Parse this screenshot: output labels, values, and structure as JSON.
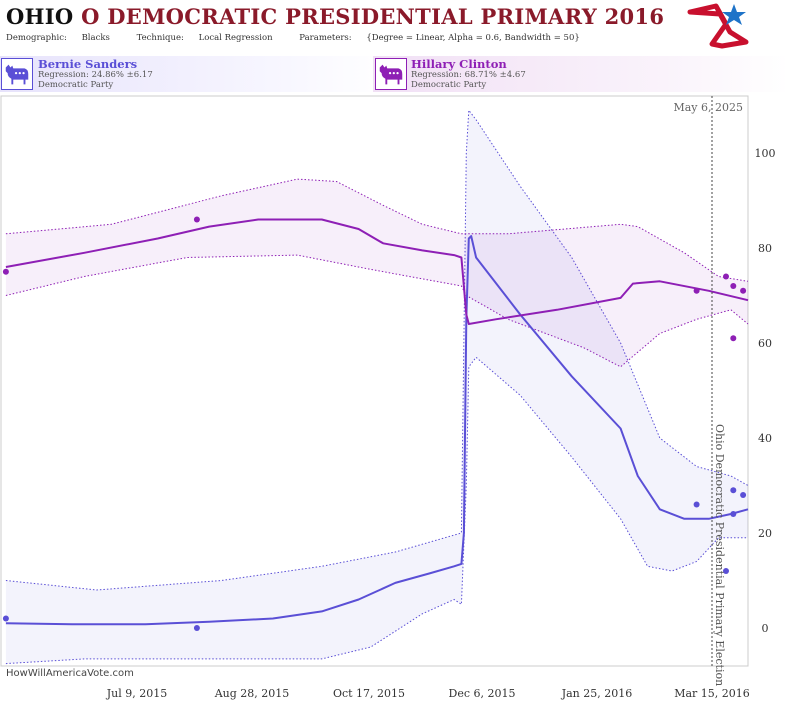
{
  "header": {
    "state": "OHIO",
    "title_rest": "O DEMOCRATIC PRESIDENTIAL PRIMARY 2016",
    "demographic_label": "Demographic:",
    "demographic_value": "Blacks",
    "technique_label": "Technique:",
    "technique_value": "Local Regression",
    "parameters_label": "Parameters:",
    "parameters_value": "{Degree = Linear, Alpha = 0.6, Bandwidth = 50}"
  },
  "candidates": [
    {
      "name": "Bernie Sanders",
      "regression": "Regression: 24.86% ±6.17",
      "party": "Democratic Party",
      "color": "#5a4fd6"
    },
    {
      "name": "Hillary Clinton",
      "regression": "Regression: 68.71% ±4.67",
      "party": "Democratic Party",
      "color": "#8e1fb5"
    }
  ],
  "watermark": "HowWillAmericaVote.com",
  "colors": {
    "sanders": "#5a4fd6",
    "clinton": "#8e1fb5",
    "brand_red": "#c8102e",
    "brand_blue": "#1e73c8"
  },
  "icons": [
    "donkey-icon",
    "star-logo-icon"
  ],
  "chart_data": {
    "type": "line",
    "x_ticks": [
      "Jul 9, 2015",
      "Aug 28, 2015",
      "Oct 17, 2015",
      "Dec 6, 2015",
      "Jan 25, 2016",
      "Mar 15, 2016"
    ],
    "y_ticks": [
      0,
      20,
      40,
      60,
      80,
      100
    ],
    "ylim": [
      -8,
      112
    ],
    "xlim": [
      "May 17, 2015",
      "Mar 17, 2016"
    ],
    "grid": false,
    "current_date_label": "May 6, 2025",
    "election_label": "Ohio Democratic Presidential Primary Election",
    "series": [
      {
        "name": "Bernie Sanders",
        "color": "#5a4fd6",
        "line": [
          [
            "2015-05-19",
            1
          ],
          [
            "2015-06-15",
            0.8
          ],
          [
            "2015-07-15",
            0.8
          ],
          [
            "2015-08-10",
            1.3
          ],
          [
            "2015-09-05",
            2
          ],
          [
            "2015-09-25",
            3.5
          ],
          [
            "2015-10-10",
            6
          ],
          [
            "2015-10-25",
            9.5
          ],
          [
            "2015-11-08",
            11.5
          ],
          [
            "2015-11-18",
            13
          ],
          [
            "2015-11-21",
            13.5
          ],
          [
            "2015-11-22",
            20
          ],
          [
            "2015-11-23",
            65
          ],
          [
            "2015-11-24",
            82
          ],
          [
            "2015-11-25",
            82.5
          ],
          [
            "2015-11-27",
            78
          ],
          [
            "2015-12-15",
            66
          ],
          [
            "2016-01-05",
            53
          ],
          [
            "2016-01-25",
            42
          ],
          [
            "2016-02-01",
            32
          ],
          [
            "2016-02-10",
            25
          ],
          [
            "2016-02-20",
            23
          ],
          [
            "2016-03-01",
            23
          ],
          [
            "2016-03-10",
            24
          ],
          [
            "2016-03-17",
            25
          ]
        ],
        "upper": [
          [
            "2015-05-19",
            10
          ],
          [
            "2015-06-25",
            8
          ],
          [
            "2015-08-15",
            10
          ],
          [
            "2015-09-25",
            13
          ],
          [
            "2015-10-25",
            16
          ],
          [
            "2015-11-21",
            20
          ],
          [
            "2015-11-23",
            100
          ],
          [
            "2015-11-24",
            109
          ],
          [
            "2015-11-27",
            107
          ],
          [
            "2015-12-15",
            93
          ],
          [
            "2016-01-05",
            78
          ],
          [
            "2016-01-25",
            60
          ],
          [
            "2016-02-10",
            40
          ],
          [
            "2016-02-25",
            34
          ],
          [
            "2016-03-10",
            32
          ],
          [
            "2016-03-17",
            30
          ]
        ],
        "lower": [
          [
            "2015-05-19",
            -7.5
          ],
          [
            "2015-06-20",
            -6.5
          ],
          [
            "2015-08-15",
            -6.5
          ],
          [
            "2015-09-25",
            -6.5
          ],
          [
            "2015-10-15",
            -4
          ],
          [
            "2015-11-05",
            3
          ],
          [
            "2015-11-18",
            6
          ],
          [
            "2015-11-21",
            5
          ],
          [
            "2015-11-23",
            30
          ],
          [
            "2015-11-24",
            55
          ],
          [
            "2015-11-27",
            57
          ],
          [
            "2015-12-15",
            49
          ],
          [
            "2016-01-05",
            36
          ],
          [
            "2016-01-25",
            23
          ],
          [
            "2016-02-05",
            13
          ],
          [
            "2016-02-15",
            12
          ],
          [
            "2016-02-25",
            14
          ],
          [
            "2016-03-05",
            19
          ],
          [
            "2016-03-17",
            19
          ]
        ],
        "points": [
          [
            "2015-05-19",
            2
          ],
          [
            "2015-08-05",
            0
          ],
          [
            "2016-02-25",
            26
          ],
          [
            "2016-03-08",
            12
          ],
          [
            "2016-03-11",
            29
          ],
          [
            "2016-03-11",
            24
          ],
          [
            "2016-03-15",
            28
          ]
        ]
      },
      {
        "name": "Hillary Clinton",
        "color": "#8e1fb5",
        "line": [
          [
            "2015-05-19",
            76
          ],
          [
            "2015-06-20",
            79
          ],
          [
            "2015-07-20",
            82
          ],
          [
            "2015-08-10",
            84.5
          ],
          [
            "2015-08-30",
            86
          ],
          [
            "2015-09-25",
            86
          ],
          [
            "2015-10-10",
            84
          ],
          [
            "2015-10-20",
            81
          ],
          [
            "2015-11-05",
            79.5
          ],
          [
            "2015-11-18",
            78.5
          ],
          [
            "2015-11-21",
            78
          ],
          [
            "2015-11-23",
            66
          ],
          [
            "2015-11-24",
            64
          ],
          [
            "2015-12-05",
            65
          ],
          [
            "2015-12-30",
            67
          ],
          [
            "2016-01-25",
            69.5
          ],
          [
            "2016-01-30",
            72.5
          ],
          [
            "2016-02-10",
            73
          ],
          [
            "2016-03-01",
            71
          ],
          [
            "2016-03-17",
            69
          ]
        ],
        "upper": [
          [
            "2015-05-19",
            83
          ],
          [
            "2015-07-01",
            85
          ],
          [
            "2015-08-15",
            91
          ],
          [
            "2015-09-15",
            94.5
          ],
          [
            "2015-10-01",
            94
          ],
          [
            "2015-10-20",
            89
          ],
          [
            "2015-11-05",
            85
          ],
          [
            "2015-11-21",
            83
          ],
          [
            "2015-12-10",
            83
          ],
          [
            "2016-01-25",
            85
          ],
          [
            "2016-02-01",
            84.5
          ],
          [
            "2016-02-20",
            79
          ],
          [
            "2016-03-05",
            74
          ],
          [
            "2016-03-17",
            73
          ]
        ],
        "lower": [
          [
            "2015-05-19",
            70
          ],
          [
            "2015-06-20",
            74
          ],
          [
            "2015-08-01",
            78
          ],
          [
            "2015-09-15",
            78.5
          ],
          [
            "2015-10-15",
            75.5
          ],
          [
            "2015-11-21",
            72
          ],
          [
            "2015-11-23",
            70
          ],
          [
            "2015-12-10",
            65
          ],
          [
            "2016-01-10",
            59
          ],
          [
            "2016-01-25",
            55
          ],
          [
            "2016-02-10",
            62
          ],
          [
            "2016-02-25",
            65
          ],
          [
            "2016-03-10",
            67
          ],
          [
            "2016-03-17",
            64
          ]
        ],
        "points": [
          [
            "2015-05-19",
            75
          ],
          [
            "2015-08-05",
            86
          ],
          [
            "2016-02-25",
            71
          ],
          [
            "2016-03-08",
            74
          ],
          [
            "2016-03-11",
            72
          ],
          [
            "2016-03-11",
            61
          ],
          [
            "2016-03-15",
            71
          ]
        ]
      }
    ]
  }
}
